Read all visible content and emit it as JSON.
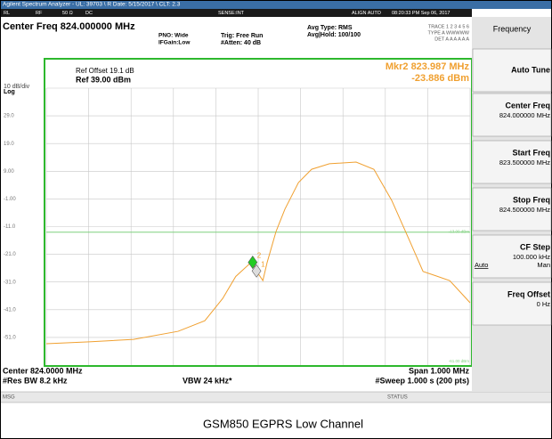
{
  "title_bar": "Agilent Spectrum Analyzer - UL: 39703 \\ R Date: 5/15/2017 \\ CLT: 2.3",
  "status_row": [
    "RL",
    "RF",
    "50 Ω",
    "DC",
    "SENSE:INT",
    "ALIGN AUTO",
    "08:20:33 PM Sep 06, 2017"
  ],
  "header": {
    "center_freq": "Center Freq 824.000000 MHz",
    "pno": "PNO: Wide",
    "ifgain": "IFGain:Low",
    "trig": "Trig: Free Run",
    "atten": "#Atten: 40 dB",
    "avg_type": "Avg Type: RMS",
    "avg_hold": "Avg|Hold: 100/100",
    "trace": "TRACE 1 2 3 4 5 6",
    "type": "TYPE A WWWWW",
    "det": "DET A A A A A A"
  },
  "plot_labels": {
    "scale": "10 dB/div",
    "log": "Log",
    "ref_offset": "Ref Offset 19.1 dB",
    "ref_level": "Ref 39.00 dBm",
    "marker_freq": "Mkr2 823.987 MHz",
    "marker_level": "-23.886 dBm",
    "bottom_line_label": "-61.00 dBm"
  },
  "chart_data": {
    "type": "line",
    "x": [
      823.5,
      823.601,
      823.706,
      823.811,
      823.874,
      823.916,
      823.947,
      823.979,
      823.987,
      823.996,
      824.011,
      824.021,
      824.042,
      824.063,
      824.095,
      824.126,
      824.168,
      824.231,
      824.273,
      824.315,
      824.357,
      824.389,
      824.42,
      824.452,
      824.5
    ],
    "series": [
      {
        "color": "#f0a030",
        "values": [
          -53.3,
          -52.6,
          -51.7,
          -48.8,
          -45,
          -37,
          -29,
          -24.5,
          -23.886,
          -27,
          -30.5,
          -24,
          -12.8,
          -4.7,
          4.9,
          9.7,
          11.7,
          12.3,
          9.7,
          -1.5,
          -16,
          -27.2,
          -28.8,
          -30.5,
          -38.5
        ]
      }
    ],
    "xlim": [
      823.5,
      824.5
    ],
    "ylim": [
      -61,
      39
    ],
    "yticks": [
      {
        "value": 29,
        "label": "29.0"
      },
      {
        "value": 19,
        "label": "19.0"
      },
      {
        "value": 9,
        "label": "9.00"
      },
      {
        "value": -1,
        "label": "-1.00"
      },
      {
        "value": -11,
        "label": "-11.0"
      },
      {
        "value": -21,
        "label": "-21.0"
      },
      {
        "value": -31,
        "label": "-31.0"
      },
      {
        "value": -41,
        "label": "-41.0"
      },
      {
        "value": -51,
        "label": "-51.0"
      }
    ],
    "grid": true,
    "display_line": {
      "value": -13,
      "label": "-13.00 dBm",
      "color": "#7fd07f"
    },
    "markers": [
      {
        "label": "2",
        "x": 823.987,
        "y": -23.886,
        "color": "#22cc22"
      },
      {
        "label": "1",
        "x": 823.996,
        "y": -27,
        "color": "#dddddd"
      }
    ]
  },
  "footer": {
    "center": "Center 824.0000 MHz",
    "span": "Span 1.000 MHz",
    "rbw": "#Res BW 8.2 kHz",
    "vbw": "VBW 24 kHz*",
    "sweep": "#Sweep 1.000 s (200 pts)",
    "msg": "MSG",
    "status": "STATUS"
  },
  "softkeys": {
    "menu": "Frequency",
    "keys": [
      {
        "label": "Auto Tune"
      },
      {
        "label": "Center Freq",
        "value": "824.000000 MHz"
      },
      {
        "label": "Start Freq",
        "value": "823.500000 MHz"
      },
      {
        "label": "Stop Freq",
        "value": "824.500000 MHz"
      },
      {
        "label": "CF Step",
        "value": "100.000 kHz",
        "auto": "Auto",
        "man": "Man"
      },
      {
        "label": "Freq Offset",
        "value": "0 Hz"
      }
    ]
  },
  "caption": "GSM850 EGPRS  Low Channel"
}
